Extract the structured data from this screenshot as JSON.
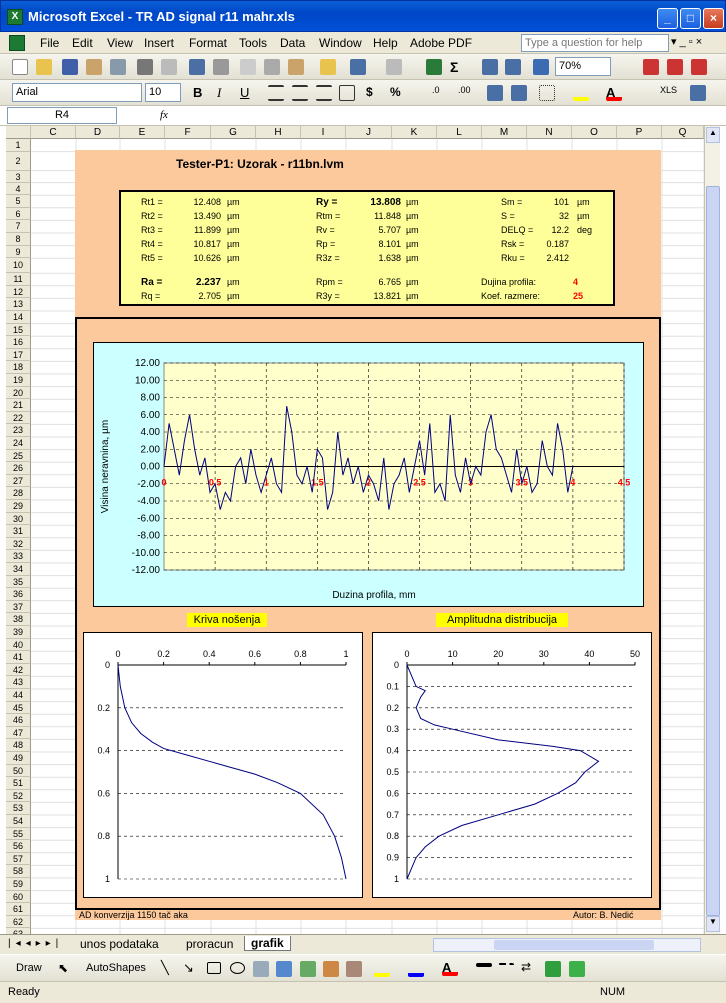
{
  "window": {
    "title": "Microsoft Excel - TR AD signal r11 mahr.xls"
  },
  "menu": {
    "items": [
      "File",
      "Edit",
      "View",
      "Insert",
      "Format",
      "Tools",
      "Data",
      "Window",
      "Help",
      "Adobe PDF"
    ],
    "question_placeholder": "Type a question for help"
  },
  "toolbar": {
    "zoom": "70%",
    "font": "Arial",
    "size": "10"
  },
  "formula": {
    "cell": "R4",
    "fx": "fx",
    "value": ""
  },
  "columns": [
    "C",
    "D",
    "E",
    "F",
    "G",
    "H",
    "I",
    "J",
    "K",
    "L",
    "M",
    "N",
    "O",
    "P",
    "Q"
  ],
  "rows": [
    "1",
    "2",
    "3",
    "4",
    "5",
    "6",
    "7",
    "8",
    "9",
    "10",
    "11",
    "12",
    "13",
    "14",
    "15",
    "16",
    "17",
    "18",
    "19",
    "20",
    "21",
    "22",
    "23",
    "24",
    "25",
    "26",
    "27",
    "28",
    "29",
    "30",
    "31",
    "32",
    "33",
    "34",
    "35",
    "36",
    "37",
    "38",
    "39",
    "40",
    "41",
    "42",
    "43",
    "44",
    "45",
    "46",
    "47",
    "48",
    "49",
    "50",
    "51",
    "52",
    "53",
    "54",
    "55",
    "56",
    "57",
    "58",
    "59",
    "60",
    "61",
    "62",
    "63"
  ],
  "sheet": {
    "heading": "Tester-P1: Uzorak - r11bn.lvm",
    "params_col1": [
      {
        "n": "Rt1 =",
        "v": "12.408",
        "u": "µm"
      },
      {
        "n": "Rt2 =",
        "v": "13.490",
        "u": "µm"
      },
      {
        "n": "Rt3 =",
        "v": "11.899",
        "u": "µm"
      },
      {
        "n": "Rt4 =",
        "v": "10.817",
        "u": "µm"
      },
      {
        "n": "Rt5 =",
        "v": "10.626",
        "u": "µm"
      },
      {
        "n": "Ra =",
        "v": "2.237",
        "u": "µm"
      },
      {
        "n": "Rq =",
        "v": "2.705",
        "u": "µm"
      }
    ],
    "params_col2": [
      {
        "n": "Ry =",
        "v": "13.808",
        "u": "µm"
      },
      {
        "n": "Rtm =",
        "v": "11.848",
        "u": "µm"
      },
      {
        "n": "Rv =",
        "v": "5.707",
        "u": "µm"
      },
      {
        "n": "Rp =",
        "v": "8.101",
        "u": "µm"
      },
      {
        "n": "R3z =",
        "v": "1.638",
        "u": "µm"
      },
      {
        "n": "Rpm =",
        "v": "6.765",
        "u": "µm"
      },
      {
        "n": "R3y =",
        "v": "13.821",
        "u": "µm"
      }
    ],
    "params_col3": [
      {
        "n": "Sm =",
        "v": "101",
        "u": "µm"
      },
      {
        "n": "S =",
        "v": "32",
        "u": "µm"
      },
      {
        "n": "DELQ =",
        "v": "12.2",
        "u": "deg"
      },
      {
        "n": "Rsk =",
        "v": "0.187",
        "u": ""
      },
      {
        "n": "Rku =",
        "v": "2.412",
        "u": ""
      }
    ],
    "length_label": "Dujina profila:",
    "length_value": "4",
    "scale_label": "Koef. razmere:",
    "scale_value": "25",
    "footer_left": "AD konverzija 1150 tač aka",
    "footer_right": "Autor: B. Nedić"
  },
  "colors": {
    "peach": "#fcc99c",
    "paramfill": "#ffff99",
    "plotbg": "#ffffcc",
    "frame": "#ccffff",
    "line": "#000080",
    "accent": "#ff0000"
  },
  "chart_data": [
    {
      "type": "line",
      "title": "",
      "ylabel": "Visina neravnina,   µm",
      "xlabel": "Duzina profila, mm",
      "ylim": [
        -12,
        12
      ],
      "yticks": [
        "12.00",
        "10.00",
        "8.00",
        "6.00",
        "4.00",
        "2.00",
        "0.00",
        "-2.00",
        "-4.00",
        "-6.00",
        "-8.00",
        "-10.00",
        "-12.00"
      ],
      "xticks": [
        "0",
        "0.5",
        "1",
        "1.5",
        "2",
        "2.5",
        "3",
        "3.5",
        "4",
        "4.5"
      ],
      "xlim": [
        0,
        4.5
      ],
      "x": [
        0,
        0.05,
        0.1,
        0.15,
        0.2,
        0.25,
        0.3,
        0.35,
        0.4,
        0.45,
        0.5,
        0.55,
        0.6,
        0.65,
        0.7,
        0.75,
        0.8,
        0.85,
        0.9,
        0.95,
        1.0,
        1.05,
        1.1,
        1.15,
        1.2,
        1.25,
        1.3,
        1.35,
        1.4,
        1.45,
        1.5,
        1.55,
        1.6,
        1.65,
        1.7,
        1.75,
        1.8,
        1.85,
        1.9,
        1.95,
        2.0,
        2.05,
        2.1,
        2.15,
        2.2,
        2.25,
        2.3,
        2.35,
        2.4,
        2.45,
        2.5,
        2.55,
        2.6,
        2.65,
        2.7,
        2.75,
        2.8,
        2.85,
        2.9,
        2.95,
        3.0,
        3.05,
        3.1,
        3.15,
        3.2,
        3.25,
        3.3,
        3.35,
        3.4,
        3.45,
        3.5,
        3.55,
        3.6,
        3.65,
        3.7,
        3.75,
        3.8,
        3.85,
        3.9,
        3.95,
        4.0
      ],
      "y": [
        0,
        5,
        2,
        -1,
        3,
        6,
        2,
        -1,
        1,
        -3,
        -2,
        -5,
        -3,
        -4,
        0,
        1,
        -2,
        2,
        -1,
        -3,
        -1,
        1,
        -2,
        -3,
        7,
        4,
        -1,
        -2,
        0,
        -3,
        2,
        1,
        -5,
        -3,
        4,
        -1,
        1,
        -2,
        0,
        -3,
        -1,
        -2,
        -4,
        1,
        -5,
        -2,
        -1,
        1,
        -3,
        0,
        3,
        -1,
        5,
        -3,
        -2,
        -4,
        6,
        -1,
        -3,
        1,
        -2,
        0,
        -1,
        4,
        6,
        2,
        1,
        -1,
        -3,
        2,
        -2,
        0,
        -3,
        -2,
        3,
        0,
        -1,
        5,
        2,
        -3,
        0
      ]
    },
    {
      "type": "line",
      "title": "Kriva nošenja",
      "xlim": [
        0,
        1
      ],
      "ylim": [
        0,
        1
      ],
      "xticks": [
        "0",
        "0.2",
        "0.4",
        "0.6",
        "0.8",
        "1"
      ],
      "yticks": [
        "0",
        "0.2",
        "0.4",
        "0.6",
        "0.8",
        "1"
      ],
      "x": [
        0,
        0.01,
        0.03,
        0.06,
        0.1,
        0.15,
        0.2,
        0.3,
        0.4,
        0.5,
        0.6,
        0.7,
        0.8,
        0.9,
        0.95,
        0.98,
        1.0
      ],
      "y": [
        0,
        0.1,
        0.2,
        0.27,
        0.32,
        0.36,
        0.39,
        0.42,
        0.45,
        0.48,
        0.51,
        0.55,
        0.6,
        0.7,
        0.8,
        0.9,
        1.0
      ]
    },
    {
      "type": "line",
      "title": "Amplitudna distribucija",
      "xlim": [
        0,
        50
      ],
      "ylim": [
        0,
        1
      ],
      "xticks": [
        "0",
        "10",
        "20",
        "30",
        "40",
        "50"
      ],
      "yticks": [
        "0",
        "0.1",
        "0.2",
        "0.3",
        "0.4",
        "0.5",
        "0.6",
        "0.7",
        "0.8",
        "0.9",
        "1"
      ],
      "x": [
        0,
        1,
        2,
        4,
        3,
        2,
        3,
        6,
        10,
        20,
        32,
        38,
        42,
        39,
        37,
        33,
        28,
        20,
        12,
        7,
        4,
        2,
        1,
        0
      ],
      "y": [
        0,
        0.05,
        0.1,
        0.12,
        0.15,
        0.2,
        0.25,
        0.28,
        0.3,
        0.35,
        0.38,
        0.4,
        0.45,
        0.5,
        0.55,
        0.6,
        0.65,
        0.7,
        0.75,
        0.8,
        0.85,
        0.9,
        0.95,
        1.0
      ]
    }
  ],
  "sheettabs": [
    "unos podataka",
    "proracun",
    "grafik"
  ],
  "drawbar": {
    "draw": "Draw",
    "autoshapes": "AutoShapes"
  },
  "statusbar": {
    "ready": "Ready",
    "num": "NUM"
  }
}
